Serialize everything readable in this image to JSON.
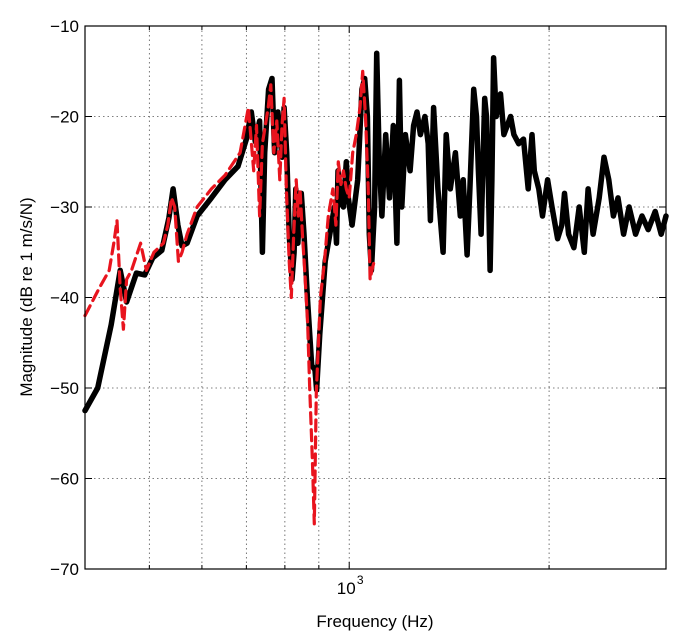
{
  "chart_data": {
    "type": "line",
    "title": "",
    "xlabel": "Frequency (Hz)",
    "ylabel": "Magnitude (dB re 1 m/s/N)",
    "xscale": "log",
    "xlim": [
      400,
      3000
    ],
    "ylim": [
      -70,
      -10
    ],
    "grid": true,
    "legend": "none",
    "x_tick_labels": [
      {
        "base": "10",
        "exp": "3",
        "value": 1000
      }
    ],
    "y_ticks": [
      -10,
      -20,
      -30,
      -40,
      -50,
      -60,
      -70
    ],
    "y_tick_labels": [
      "−10",
      "−20",
      "−30",
      "−40",
      "−50",
      "−60",
      "−70"
    ],
    "colors": {
      "solid": "#000000",
      "dashed": "#e8141e"
    },
    "series": [
      {
        "style": "solid",
        "color": "#000000",
        "points": [
          [
            400,
            -52.5
          ],
          [
            418,
            -50
          ],
          [
            438,
            -43
          ],
          [
            452,
            -37
          ],
          [
            462,
            -40.5
          ],
          [
            478,
            -37.3
          ],
          [
            492,
            -37.5
          ],
          [
            506,
            -35.6
          ],
          [
            522,
            -34.8
          ],
          [
            535,
            -31.2
          ],
          [
            543,
            -28
          ],
          [
            552,
            -32
          ],
          [
            560,
            -34.3
          ],
          [
            570,
            -34
          ],
          [
            590,
            -31
          ],
          [
            620,
            -29
          ],
          [
            650,
            -27
          ],
          [
            680,
            -25.5
          ],
          [
            700,
            -22.5
          ],
          [
            712,
            -19.5
          ],
          [
            722,
            -22.8
          ],
          [
            733,
            -20.5
          ],
          [
            740,
            -35
          ],
          [
            746,
            -24
          ],
          [
            756,
            -17
          ],
          [
            765,
            -15.8
          ],
          [
            772,
            -24
          ],
          [
            781,
            -19.5
          ],
          [
            792,
            -24.5
          ],
          [
            798,
            -19
          ],
          [
            805,
            -24
          ],
          [
            812,
            -33
          ],
          [
            820,
            -38
          ],
          [
            826,
            -35
          ],
          [
            831,
            -28
          ],
          [
            837,
            -34
          ],
          [
            842,
            -30
          ],
          [
            847,
            -28.5
          ],
          [
            855,
            -33
          ],
          [
            865,
            -40
          ],
          [
            878,
            -47.5
          ],
          [
            888,
            -48
          ],
          [
            893,
            -50.2
          ],
          [
            903,
            -44
          ],
          [
            920,
            -36
          ],
          [
            935,
            -33
          ],
          [
            950,
            -30
          ],
          [
            957,
            -34
          ],
          [
            962,
            -26
          ],
          [
            970,
            -29.5
          ],
          [
            980,
            -30
          ],
          [
            990,
            -25
          ],
          [
            997,
            -29
          ],
          [
            1010,
            -32
          ],
          [
            1030,
            -27
          ],
          [
            1045,
            -17
          ],
          [
            1055,
            -15.8
          ],
          [
            1065,
            -20
          ],
          [
            1072,
            -33
          ],
          [
            1080,
            -37
          ],
          [
            1092,
            -30
          ],
          [
            1100,
            -13
          ],
          [
            1110,
            -25
          ],
          [
            1120,
            -31
          ],
          [
            1135,
            -22
          ],
          [
            1150,
            -29
          ],
          [
            1165,
            -21
          ],
          [
            1180,
            -34
          ],
          [
            1190,
            -16
          ],
          [
            1200,
            -30
          ],
          [
            1215,
            -22
          ],
          [
            1235,
            -26
          ],
          [
            1250,
            -21
          ],
          [
            1265,
            -19.5
          ],
          [
            1280,
            -22
          ],
          [
            1300,
            -20
          ],
          [
            1315,
            -23
          ],
          [
            1325,
            -31.5
          ],
          [
            1340,
            -19
          ],
          [
            1360,
            -28
          ],
          [
            1385,
            -35
          ],
          [
            1400,
            -22
          ],
          [
            1420,
            -28
          ],
          [
            1445,
            -24
          ],
          [
            1470,
            -31
          ],
          [
            1485,
            -27
          ],
          [
            1505,
            -35.3
          ],
          [
            1520,
            -28
          ],
          [
            1540,
            -17
          ],
          [
            1555,
            -20
          ],
          [
            1565,
            -26
          ],
          [
            1580,
            -33
          ],
          [
            1600,
            -18
          ],
          [
            1610,
            -20
          ],
          [
            1620,
            -27
          ],
          [
            1630,
            -37
          ],
          [
            1640,
            -27
          ],
          [
            1650,
            -13.5
          ],
          [
            1665,
            -20
          ],
          [
            1690,
            -17.5
          ],
          [
            1710,
            -22
          ],
          [
            1730,
            -21
          ],
          [
            1750,
            -20
          ],
          [
            1770,
            -22
          ],
          [
            1800,
            -23
          ],
          [
            1830,
            -22.5
          ],
          [
            1860,
            -28
          ],
          [
            1885,
            -22
          ],
          [
            1900,
            -26
          ],
          [
            1930,
            -28
          ],
          [
            1955,
            -31
          ],
          [
            1990,
            -27
          ],
          [
            2020,
            -30
          ],
          [
            2060,
            -33.5
          ],
          [
            2090,
            -32
          ],
          [
            2110,
            -28.5
          ],
          [
            2140,
            -33
          ],
          [
            2180,
            -34.5
          ],
          [
            2220,
            -30
          ],
          [
            2260,
            -35
          ],
          [
            2290,
            -28
          ],
          [
            2330,
            -33
          ],
          [
            2380,
            -29
          ],
          [
            2420,
            -24.5
          ],
          [
            2460,
            -27
          ],
          [
            2500,
            -31
          ],
          [
            2540,
            -29
          ],
          [
            2590,
            -33
          ],
          [
            2640,
            -30
          ],
          [
            2700,
            -33
          ],
          [
            2760,
            -31
          ],
          [
            2820,
            -32.5
          ],
          [
            2890,
            -30.5
          ],
          [
            2950,
            -33
          ],
          [
            3000,
            -31
          ]
        ]
      },
      {
        "style": "dashed",
        "color": "#e8141e",
        "points": [
          [
            400,
            -42
          ],
          [
            420,
            -39
          ],
          [
            435,
            -37
          ],
          [
            442,
            -34
          ],
          [
            447,
            -31.5
          ],
          [
            452,
            -39
          ],
          [
            457,
            -43.5
          ],
          [
            462,
            -38
          ],
          [
            470,
            -37
          ],
          [
            485,
            -34
          ],
          [
            495,
            -37
          ],
          [
            508,
            -35
          ],
          [
            525,
            -34
          ],
          [
            533,
            -32
          ],
          [
            540,
            -29
          ],
          [
            546,
            -30
          ],
          [
            553,
            -36
          ],
          [
            560,
            -35
          ],
          [
            570,
            -33
          ],
          [
            590,
            -30
          ],
          [
            620,
            -28
          ],
          [
            650,
            -26.5
          ],
          [
            685,
            -24
          ],
          [
            705,
            -19
          ],
          [
            718,
            -26
          ],
          [
            725,
            -21
          ],
          [
            733,
            -31
          ],
          [
            740,
            -23
          ],
          [
            755,
            -19
          ],
          [
            762,
            -16.5
          ],
          [
            770,
            -24
          ],
          [
            778,
            -20.5
          ],
          [
            786,
            -27
          ],
          [
            792,
            -21
          ],
          [
            798,
            -18
          ],
          [
            804,
            -27.8
          ],
          [
            812,
            -36
          ],
          [
            818,
            -40
          ],
          [
            825,
            -33
          ],
          [
            832,
            -27
          ],
          [
            838,
            -31
          ],
          [
            843,
            -28
          ],
          [
            850,
            -33
          ],
          [
            857,
            -37
          ],
          [
            866,
            -43
          ],
          [
            872,
            -50
          ],
          [
            880,
            -58
          ],
          [
            886,
            -65
          ],
          [
            892,
            -50.5
          ],
          [
            905,
            -40
          ],
          [
            918,
            -36
          ],
          [
            930,
            -31
          ],
          [
            945,
            -28
          ],
          [
            955,
            -32
          ],
          [
            963,
            -25
          ],
          [
            972,
            -27.5
          ],
          [
            980,
            -26
          ],
          [
            990,
            -28
          ],
          [
            1000,
            -29
          ],
          [
            1012,
            -24
          ],
          [
            1025,
            -22
          ],
          [
            1038,
            -19
          ],
          [
            1048,
            -15
          ],
          [
            1058,
            -20
          ],
          [
            1068,
            -28
          ],
          [
            1075,
            -38
          ],
          [
            1082,
            -37
          ],
          [
            1090,
            -36
          ]
        ]
      }
    ]
  }
}
